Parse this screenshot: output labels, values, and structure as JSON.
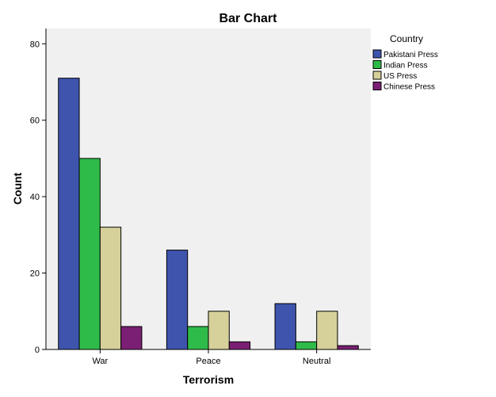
{
  "chart_data": {
    "type": "bar",
    "title": "Bar Chart",
    "xlabel": "Terrorism",
    "ylabel": "Count",
    "categories": [
      "War",
      "Peace",
      "Neutral"
    ],
    "ylim": [
      0,
      84
    ],
    "yticks": [
      0,
      20,
      40,
      60,
      80
    ],
    "grid": false,
    "legend_title": "Country",
    "legend_position": "right",
    "series": [
      {
        "name": "Pakistani Press",
        "color": "#3f54ad",
        "values": [
          71,
          26,
          12
        ]
      },
      {
        "name": "Indian Press",
        "color": "#2fbb49",
        "values": [
          50,
          6,
          2
        ]
      },
      {
        "name": "US Press",
        "color": "#d6d09a",
        "values": [
          32,
          10,
          10
        ]
      },
      {
        "name": "Chinese Press",
        "color": "#7b1f74",
        "values": [
          6,
          2,
          1
        ]
      }
    ],
    "plot_background": "#f0f0f0"
  }
}
